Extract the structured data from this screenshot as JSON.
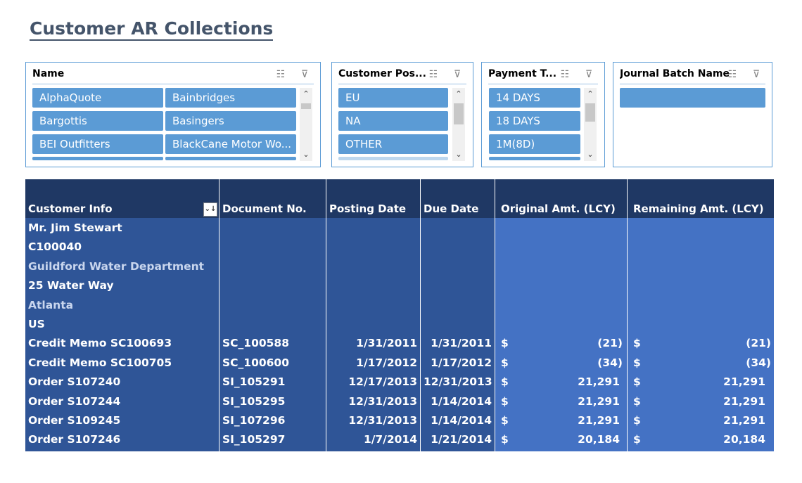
{
  "title": "Customer AR Collections",
  "slicers": {
    "name": {
      "label": "Name",
      "items": [
        "AlphaQuote",
        "Bainbridges",
        "Bargottis",
        "Basingers",
        "BEI Outfitters",
        "BlackCane Motor Wo..."
      ]
    },
    "customer_posting": {
      "label": "Customer Pos...",
      "items": [
        "EU",
        "NA",
        "OTHER"
      ]
    },
    "payment_terms": {
      "label": "Payment T...",
      "items": [
        "14 DAYS",
        "18 DAYS",
        "1M(8D)"
      ]
    },
    "journal_batch": {
      "label": "Journal Batch Name"
    }
  },
  "table": {
    "headers": {
      "customer_info": "Customer Info",
      "document_no": "Document No.",
      "posting_date": "Posting Date",
      "due_date": "Due Date",
      "original_amt": "Original Amt. (LCY)",
      "remaining_amt": "Remaining Amt. (LCY)"
    },
    "customer_lines": [
      "Mr. Jim Stewart",
      "C100040",
      "Guildford Water Department",
      "25 Water Way",
      "Atlanta",
      "US"
    ],
    "rows": [
      {
        "info": "Credit Memo SC100693",
        "doc": "SC_100588",
        "posting": "1/31/2011",
        "due": "1/31/2011",
        "cur1": "$",
        "orig": "(21)",
        "cur2": "$",
        "rem": "(21)"
      },
      {
        "info": "Credit Memo SC100705",
        "doc": "SC_100600",
        "posting": "1/17/2012",
        "due": "1/17/2012",
        "cur1": "$",
        "orig": "(34)",
        "cur2": "$",
        "rem": "(34)"
      },
      {
        "info": "Order S107240",
        "doc": "SI_105291",
        "posting": "12/17/2013",
        "due": "12/31/2013",
        "cur1": "$",
        "orig": "21,291",
        "cur2": "$",
        "rem": "21,291"
      },
      {
        "info": "Order S107244",
        "doc": "SI_105295",
        "posting": "12/31/2013",
        "due": "1/14/2014",
        "cur1": "$",
        "orig": "21,291",
        "cur2": "$",
        "rem": "21,291"
      },
      {
        "info": "Order S109245",
        "doc": "SI_107296",
        "posting": "12/31/2013",
        "due": "1/14/2014",
        "cur1": "$",
        "orig": "21,291",
        "cur2": "$",
        "rem": "21,291"
      },
      {
        "info": "Order S107246",
        "doc": "SI_105297",
        "posting": "1/7/2014",
        "due": "1/21/2014",
        "cur1": "$",
        "orig": "20,184",
        "cur2": "$",
        "rem": "20,184"
      }
    ]
  },
  "colors": {
    "title": "#44546A",
    "slicer_item": "#5B9BD5",
    "header": "#1F3864",
    "left_cols": "#2F5597",
    "right_cols": "#4472C4"
  }
}
